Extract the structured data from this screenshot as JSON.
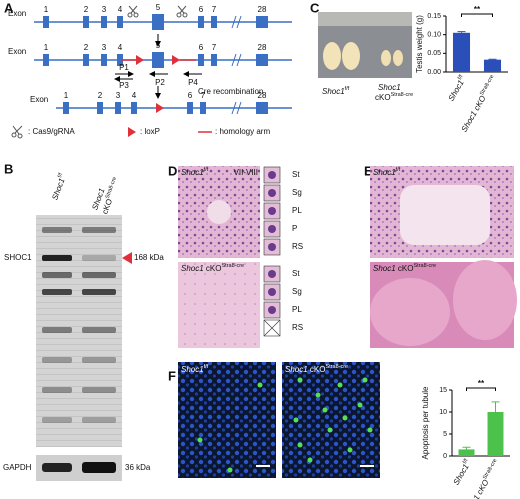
{
  "panel_a": {
    "label": "A",
    "rows": [
      {
        "exon": "Exon",
        "numbers": [
          "1",
          "2",
          "3",
          "4",
          "5",
          "6",
          "7",
          "28"
        ]
      },
      {
        "exon": "Exon",
        "numbers": [
          "1",
          "2",
          "3",
          "4",
          "5",
          "6",
          "7",
          "28"
        ]
      },
      {
        "exon": "Exon",
        "numbers": [
          "1",
          "2",
          "3",
          "4",
          "6",
          "7",
          "28"
        ]
      }
    ],
    "primers": [
      "P1",
      "P2",
      "P3",
      "P4"
    ],
    "cre": "Cre recombination",
    "legend": [
      ": Cas9/gRNA",
      ": loxP",
      ": homology arm"
    ]
  },
  "panel_b": {
    "label": "B",
    "gene": "Shoc1",
    "ff": "f/f",
    "cko": "cKO",
    "cre": "Stra8-cre",
    "protein": "SHOC1",
    "protein_size": "168 kDa",
    "control": "GAPDH",
    "control_size": "36 kDa"
  },
  "panel_c": {
    "label": "C",
    "gene": "Shoc1",
    "ff": "f/f",
    "cko": "cKO",
    "cre": "Stra8-cre"
  },
  "panel_d": {
    "label": "D",
    "gene": "Shoc1",
    "ff": "f/f",
    "stage": "VII-VIII",
    "cko": "cKO",
    "cre": "Stra8-cre",
    "cells_ff": [
      "St",
      "Sg",
      "PL",
      "P",
      "RS"
    ],
    "cells_cko": [
      "St",
      "Sg",
      "PL",
      "RS"
    ]
  },
  "panel_e": {
    "label": "E",
    "gene": "Shoc1",
    "ff": "f/f",
    "cko": "cKO",
    "cre": "Stra8-cre"
  },
  "panel_f": {
    "label": "F",
    "gene": "Shoc1",
    "ff": "f/f",
    "cko": "cKO",
    "cre": "Stra8-cre"
  },
  "chart_data": [
    {
      "type": "bar",
      "y_label": "Testis weight (g)",
      "categories": [
        "Shoc1",
        "Shoc1 cKO"
      ],
      "category_superscripts": [
        "f/f",
        "Stra8-cre"
      ],
      "values": [
        0.105,
        0.033
      ],
      "errors": [
        0.003,
        0.001
      ],
      "color": "#2b4fb8",
      "ylim": [
        0,
        0.15
      ],
      "yticks": [
        {
          "value": 0,
          "label": "0.00"
        },
        {
          "value": 0.05,
          "label": "0.05"
        },
        {
          "value": 0.1,
          "label": "0.10"
        },
        {
          "value": 0.15,
          "label": "0.15"
        }
      ],
      "significance": "**"
    },
    {
      "type": "bar",
      "y_label": "Apoptosis per tubule",
      "categories": [
        "Shoc1",
        "Shoc1 cKO"
      ],
      "category_superscripts": [
        "f/f",
        "Stra8-cre"
      ],
      "values": [
        1.5,
        10
      ],
      "errors": [
        0.5,
        2.3
      ],
      "color": "#4cc14c",
      "ylim": [
        0,
        15
      ],
      "yticks": [
        0,
        5,
        10,
        15
      ],
      "significance": "**"
    }
  ]
}
